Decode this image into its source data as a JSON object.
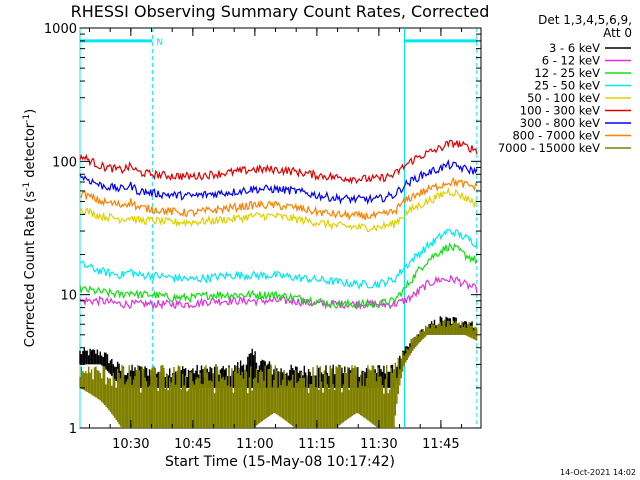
{
  "chart_data": {
    "type": "line",
    "title": "RHESSI Observing Summary Count Rates, Corrected",
    "xlabel": "Start Time (15-May-08 10:17:42)",
    "ylabel_main": "Corrected Count Rate (s",
    "ylabel_sup1": "-1",
    "ylabel_mid": " detector",
    "ylabel_sup2": "-1",
    "ylabel_end": ")",
    "y_scale": "log",
    "ylim": [
      1,
      1000
    ],
    "x_unit": "minutes after 10:17:42",
    "xlim": [
      0,
      97
    ],
    "x_ticks": [
      {
        "label": "10:30",
        "value": 12.3
      },
      {
        "label": "10:45",
        "value": 27.3
      },
      {
        "label": "11:00",
        "value": 42.3
      },
      {
        "label": "11:15",
        "value": 57.3
      },
      {
        "label": "11:30",
        "value": 72.3
      },
      {
        "label": "11:45",
        "value": 87.3
      }
    ],
    "y_ticks": [
      {
        "label": "1000",
        "value": 1000
      },
      {
        "label": "100",
        "value": 100
      },
      {
        "label": "10",
        "value": 10
      },
      {
        "label": "1",
        "value": 1
      }
    ],
    "legend_header": [
      "Det 1,3,4,5,6,9,",
      "Att 0"
    ],
    "legend_position": "right",
    "night_flag": {
      "label": "N",
      "intervals": [
        [
          0,
          17.5
        ],
        [
          78.5,
          96
        ]
      ],
      "y_level": 800
    },
    "vertical_markers": [
      0,
      17.5,
      78.5,
      96
    ],
    "x_samples": [
      0,
      5,
      10,
      12.3,
      14,
      17.5,
      22,
      27,
      32,
      37,
      42,
      47,
      52,
      57,
      62,
      67,
      72,
      76,
      78.5,
      81,
      84,
      87,
      89,
      91,
      93,
      96
    ],
    "series": [
      {
        "name": "3 - 6 keV",
        "color": "#000000",
        "style": "band",
        "lower": [
          3,
          3,
          2,
          2,
          2,
          2,
          2,
          2,
          2,
          2,
          2,
          2,
          2,
          2,
          2,
          2,
          2,
          2,
          3,
          4,
          5,
          5,
          5,
          5,
          5,
          5
        ],
        "upper": [
          4,
          4,
          3,
          3,
          3,
          3,
          3,
          3,
          3,
          3,
          4,
          3,
          3,
          3,
          3,
          3,
          3,
          3,
          4,
          5,
          6,
          7,
          7,
          7,
          7,
          6
        ]
      },
      {
        "name": "6 - 12 keV",
        "color": "#e030e0",
        "values": [
          9,
          9,
          8.5,
          8.5,
          8.5,
          8.5,
          8.5,
          8.5,
          9,
          9,
          9,
          9,
          9,
          8.5,
          8.5,
          8.5,
          8.5,
          8.5,
          9,
          10,
          12,
          13,
          13,
          13,
          12,
          11
        ]
      },
      {
        "name": "12 - 25 keV",
        "color": "#10e010",
        "values": [
          11,
          10.5,
          10,
          10.5,
          10,
          10,
          9.5,
          9.5,
          10,
          10,
          10,
          10,
          9.5,
          9,
          8.5,
          8.5,
          8.5,
          9,
          11,
          14,
          18,
          21,
          23,
          22,
          20,
          18
        ]
      },
      {
        "name": "25 - 50 keV",
        "color": "#00e8f0",
        "values": [
          17,
          15,
          14,
          15,
          14,
          14,
          13.5,
          13,
          13.5,
          14,
          14,
          14,
          13.5,
          13,
          12.5,
          12,
          12,
          13,
          16,
          19,
          23,
          27,
          30,
          29,
          27,
          24
        ]
      },
      {
        "name": "50 - 100 keV",
        "color": "#e0d000",
        "values": [
          44,
          39,
          37,
          38,
          36,
          36,
          35,
          35,
          36,
          37,
          39,
          39,
          37,
          35,
          33,
          32,
          32,
          34,
          40,
          45,
          50,
          55,
          60,
          58,
          54,
          48
        ]
      },
      {
        "name": "100 - 300 keV",
        "color": "#e00000",
        "values": [
          110,
          92,
          86,
          92,
          83,
          80,
          78,
          77,
          80,
          83,
          87,
          87,
          84,
          79,
          76,
          74,
          74,
          79,
          92,
          105,
          115,
          125,
          135,
          137,
          130,
          122
        ]
      },
      {
        "name": "300 - 800 keV",
        "color": "#0000ff",
        "values": [
          78,
          66,
          62,
          66,
          60,
          58,
          56,
          55,
          57,
          59,
          62,
          62,
          60,
          56,
          53,
          52,
          52,
          56,
          66,
          74,
          82,
          88,
          94,
          92,
          88,
          84
        ]
      },
      {
        "name": "800 - 7000 keV",
        "color": "#ff8000",
        "values": [
          58,
          50,
          47,
          50,
          45,
          44,
          42,
          41,
          43,
          45,
          47,
          47,
          45,
          42,
          40,
          39,
          39,
          42,
          50,
          56,
          61,
          66,
          70,
          70,
          67,
          64
        ]
      },
      {
        "name": "7000 - 15000 keV",
        "color": "#808000",
        "style": "band",
        "lower": [
          2,
          1.6,
          1,
          1,
          1,
          1,
          1,
          1,
          1,
          1,
          1,
          1.3,
          1,
          1,
          1,
          1.3,
          1,
          1,
          3,
          4,
          5,
          5,
          5,
          5,
          5,
          4.5
        ],
        "upper": [
          3,
          3,
          3,
          3,
          3,
          3,
          3,
          3,
          3,
          3,
          3,
          3,
          3,
          3,
          3,
          3,
          3,
          3,
          4,
          5,
          6,
          6.5,
          6.5,
          6.5,
          6.5,
          6
        ]
      }
    ]
  },
  "footer": {
    "timestamp": "14-Oct-2021 14:02"
  }
}
